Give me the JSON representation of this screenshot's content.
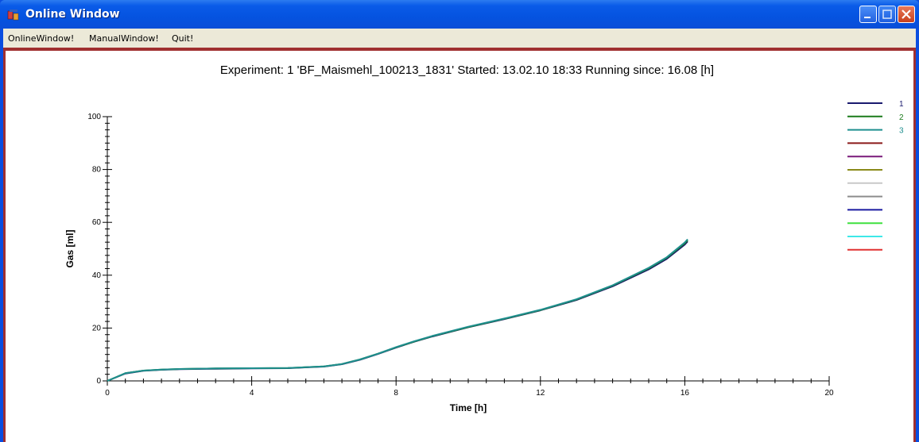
{
  "window": {
    "title": "Online Window",
    "colors": {
      "titlebar": "#0a5be8",
      "client_border": "#a03030",
      "background": "#ffffff"
    }
  },
  "menu": {
    "items": [
      "OnlineWindow!",
      "ManualWindow!",
      "Quit!"
    ]
  },
  "chart_data": {
    "type": "line",
    "title": "Experiment: 1 'BF_Maismehl_100213_1831'  Started: 13.02.10 18:33   Running since: 16.08 [h]",
    "xlabel": "Time [h]",
    "ylabel": "Gas [ml]",
    "xlim": [
      0,
      20
    ],
    "ylim": [
      0,
      100
    ],
    "xticks": [
      0,
      4,
      8,
      12,
      16,
      20
    ],
    "yticks": [
      0,
      20,
      40,
      60,
      80,
      100
    ],
    "legend_position": "right",
    "series": [
      {
        "name": "1",
        "color": "#1a1a6e",
        "x": [
          0,
          0.5,
          1,
          1.5,
          2,
          3,
          4,
          5,
          6,
          6.5,
          7,
          7.5,
          8,
          8.5,
          9,
          10,
          11,
          12,
          13,
          14,
          15,
          15.5,
          16,
          16.08
        ],
        "y": [
          0,
          2.8,
          3.8,
          4.2,
          4.4,
          4.6,
          4.7,
          4.8,
          5.4,
          6.3,
          8.0,
          10.2,
          12.6,
          14.8,
          16.8,
          20.3,
          23.4,
          26.7,
          30.6,
          35.8,
          42.2,
          46.2,
          51.6,
          52.8
        ]
      },
      {
        "name": "2",
        "color": "#1a7a1a",
        "x": [
          0,
          0.5,
          1,
          1.5,
          2,
          3,
          4,
          5,
          6,
          6.5,
          7,
          7.5,
          8,
          8.5,
          9,
          10,
          11,
          12,
          13,
          14,
          15,
          15.5,
          16,
          16.08
        ],
        "y": [
          0,
          2.9,
          3.9,
          4.3,
          4.5,
          4.7,
          4.8,
          4.9,
          5.5,
          6.4,
          8.1,
          10.3,
          12.7,
          14.9,
          16.9,
          20.4,
          23.5,
          26.8,
          30.8,
          36.1,
          42.6,
          46.6,
          52.1,
          53.3
        ]
      },
      {
        "name": "3",
        "color": "#1f8f8f",
        "x": [
          0,
          0.5,
          1,
          1.5,
          2,
          3,
          4,
          5,
          6,
          6.5,
          7,
          7.5,
          8,
          8.5,
          9,
          10,
          11,
          12,
          13,
          14,
          15,
          15.5,
          16,
          16.08
        ],
        "y": [
          0,
          2.9,
          3.9,
          4.3,
          4.5,
          4.7,
          4.8,
          4.9,
          5.5,
          6.4,
          8.1,
          10.3,
          12.8,
          15.0,
          17.0,
          20.5,
          23.6,
          26.9,
          30.9,
          36.2,
          42.8,
          46.8,
          52.4,
          53.6
        ]
      }
    ],
    "legend_swatch_colors": [
      "#1a1a6e",
      "#1a7a1a",
      "#1f8f8f",
      "#8b1a1a",
      "#7a1a7a",
      "#8a8a1a",
      "#c8c8c8",
      "#8c8c8c",
      "#1a1aa0",
      "#3ee03e",
      "#3ee8e8",
      "#e03030"
    ]
  }
}
